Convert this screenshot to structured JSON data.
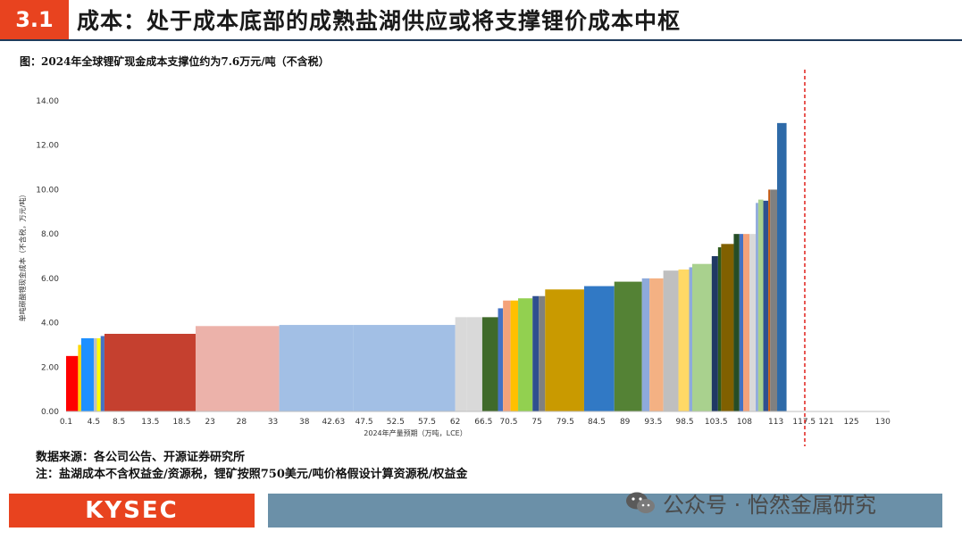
{
  "header": {
    "section_number": "3.1",
    "title": "成本：处于成本底部的成熟盐湖供应或将支撑锂价成本中枢"
  },
  "figure_caption": "图：2024年全球锂矿现金成本支撑位约为7.6万元/吨（不含税）",
  "chart_data": {
    "type": "bar",
    "variable_width": true,
    "xlabel": "2024年产量预期（万吨，LCE）",
    "ylabel": "单吨碳酸锂现金成本（不含税，万元/吨）",
    "ylim": [
      0,
      14
    ],
    "yticks": [
      "0.00",
      "2.00",
      "4.00",
      "6.00",
      "8.00",
      "10.00",
      "12.00",
      "14.00"
    ],
    "xlim": [
      0.1,
      131.1
    ],
    "xtick_labels": [
      "0.1",
      "4.5",
      "8.5",
      "13.5",
      "18.5",
      "23",
      "28",
      "33",
      "38",
      "42.63",
      "47.5",
      "52.5",
      "57.5",
      "62",
      "66.5",
      "70.5",
      "75",
      "79.5",
      "84.5",
      "89",
      "93.5",
      "98.5",
      "103.5",
      "108",
      "113",
      "117.5",
      "121",
      "125",
      "130"
    ],
    "xtick_values": [
      0.1,
      4.5,
      8.5,
      13.5,
      18.5,
      23,
      28,
      33,
      38,
      42.63,
      47.5,
      52.5,
      57.5,
      62,
      66.5,
      70.5,
      75,
      79.5,
      84.5,
      89,
      93.5,
      98.5,
      103.5,
      108,
      113,
      117.5,
      121,
      125,
      130
    ],
    "support_line_x": 117.6,
    "bars": [
      {
        "x0": 0.1,
        "x1": 2.0,
        "value": 2.5,
        "color": "#ff0000"
      },
      {
        "x0": 2.0,
        "x1": 2.5,
        "value": 3.0,
        "color": "#ffd700"
      },
      {
        "x0": 2.5,
        "x1": 4.5,
        "value": 3.3,
        "color": "#1e90ff"
      },
      {
        "x0": 4.5,
        "x1": 5.0,
        "value": 3.3,
        "color": "#c0c0c0"
      },
      {
        "x0": 5.0,
        "x1": 5.6,
        "value": 3.3,
        "color": "#ffff00"
      },
      {
        "x0": 5.6,
        "x1": 6.2,
        "value": 3.4,
        "color": "#4472c4"
      },
      {
        "x0": 6.2,
        "x1": 20.7,
        "value": 3.5,
        "color": "#c5402f"
      },
      {
        "x0": 20.7,
        "x1": 34.0,
        "value": 3.85,
        "color": "#ecb2aa"
      },
      {
        "x0": 34.0,
        "x1": 45.8,
        "value": 3.9,
        "color": "#a2bfe5"
      },
      {
        "x0": 45.8,
        "x1": 62.0,
        "value": 3.9,
        "color": "#a2bfe5"
      },
      {
        "x0": 62.0,
        "x1": 63.8,
        "value": 4.25,
        "color": "#d9d9d9"
      },
      {
        "x0": 63.8,
        "x1": 66.3,
        "value": 4.25,
        "color": "#d9d9d9"
      },
      {
        "x0": 66.3,
        "x1": 68.8,
        "value": 4.25,
        "color": "#3f6a2a"
      },
      {
        "x0": 68.8,
        "x1": 69.6,
        "value": 4.65,
        "color": "#4472c4"
      },
      {
        "x0": 69.6,
        "x1": 70.8,
        "value": 5.0,
        "color": "#f4a27a"
      },
      {
        "x0": 70.8,
        "x1": 72.0,
        "value": 5.0,
        "color": "#ffc000"
      },
      {
        "x0": 72.0,
        "x1": 74.3,
        "value": 5.1,
        "color": "#92d050"
      },
      {
        "x0": 74.3,
        "x1": 75.3,
        "value": 5.2,
        "color": "#2f4f8f"
      },
      {
        "x0": 75.3,
        "x1": 76.3,
        "value": 5.2,
        "color": "#808080"
      },
      {
        "x0": 76.3,
        "x1": 82.5,
        "value": 5.5,
        "color": "#c99a00"
      },
      {
        "x0": 82.5,
        "x1": 87.3,
        "value": 5.65,
        "color": "#3179c5"
      },
      {
        "x0": 87.3,
        "x1": 91.7,
        "value": 5.85,
        "color": "#548235"
      },
      {
        "x0": 91.7,
        "x1": 92.9,
        "value": 6.0,
        "color": "#8eaadb"
      },
      {
        "x0": 92.9,
        "x1": 95.1,
        "value": 6.0,
        "color": "#f4b183"
      },
      {
        "x0": 95.1,
        "x1": 97.5,
        "value": 6.35,
        "color": "#bfbfbf"
      },
      {
        "x0": 97.5,
        "x1": 99.2,
        "value": 6.4,
        "color": "#ffd966"
      },
      {
        "x0": 99.2,
        "x1": 99.7,
        "value": 6.5,
        "color": "#8eaadb"
      },
      {
        "x0": 99.7,
        "x1": 102.8,
        "value": 6.65,
        "color": "#a9d18e"
      },
      {
        "x0": 102.8,
        "x1": 103.8,
        "value": 7.0,
        "color": "#1f3864"
      },
      {
        "x0": 103.8,
        "x1": 104.3,
        "value": 7.4,
        "color": "#2e5a1c"
      },
      {
        "x0": 104.3,
        "x1": 106.3,
        "value": 7.55,
        "color": "#806000"
      },
      {
        "x0": 106.3,
        "x1": 107.2,
        "value": 8.0,
        "color": "#264d26"
      },
      {
        "x0": 107.2,
        "x1": 107.8,
        "value": 8.0,
        "color": "#4472c4"
      },
      {
        "x0": 107.8,
        "x1": 108.8,
        "value": 8.0,
        "color": "#f4a27a"
      },
      {
        "x0": 108.8,
        "x1": 109.8,
        "value": 8.0,
        "color": "#d9d9d9"
      },
      {
        "x0": 109.8,
        "x1": 110.2,
        "value": 9.4,
        "color": "#8eaadb"
      },
      {
        "x0": 110.2,
        "x1": 111.0,
        "value": 9.55,
        "color": "#a9d18e"
      },
      {
        "x0": 111.0,
        "x1": 111.8,
        "value": 9.5,
        "color": "#2f4f8f"
      },
      {
        "x0": 111.8,
        "x1": 112.1,
        "value": 10.0,
        "color": "#c55a11"
      },
      {
        "x0": 112.1,
        "x1": 113.2,
        "value": 10.0,
        "color": "#808080"
      },
      {
        "x0": 113.2,
        "x1": 114.7,
        "value": 13.0,
        "color": "#2e6aa8"
      }
    ]
  },
  "footer": {
    "source": "数据来源：各公司公告、开源证券研究所",
    "note": "注：盐湖成本不含权益金/资源税，锂矿按照750美元/吨价格假设计算资源税/权益金",
    "logo_text": "KYSEC",
    "watermark": "公众号 · 怡然金属研究"
  }
}
